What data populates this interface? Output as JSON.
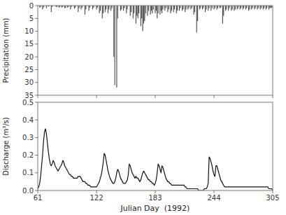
{
  "chart_data": [
    {
      "type": "bar",
      "ylabel": "Precipitation (mm)",
      "color": "#444444",
      "x": [
        63,
        64,
        66,
        67,
        70,
        72,
        75,
        76,
        80,
        81,
        83,
        84,
        86,
        87,
        89,
        90,
        92,
        93,
        95,
        96,
        99,
        100,
        103,
        104,
        106,
        107,
        110,
        111,
        114,
        115,
        118,
        119,
        122,
        123,
        125,
        126,
        128,
        129,
        131,
        132,
        134,
        135,
        137,
        138,
        140,
        141,
        143,
        144,
        147,
        148,
        150,
        151,
        153,
        154,
        157,
        158,
        160,
        161,
        163,
        164,
        165,
        166,
        168,
        169,
        170,
        171,
        172,
        173,
        175,
        176,
        178,
        179,
        180,
        181,
        183,
        184,
        185,
        186,
        188,
        189,
        190,
        191,
        193,
        194,
        196,
        197,
        199,
        200,
        202,
        203,
        205,
        206,
        208,
        209,
        211,
        212,
        214,
        215,
        217,
        218,
        220,
        221,
        223,
        224,
        226,
        227,
        229,
        230,
        232,
        233,
        235,
        236,
        238,
        239,
        241,
        242,
        244,
        245,
        247,
        248,
        250,
        251,
        253,
        254,
        256,
        257,
        259,
        260,
        262,
        263,
        265,
        266,
        268,
        269,
        271,
        272,
        274,
        275,
        277,
        278,
        280,
        281,
        283,
        284,
        286,
        287,
        289,
        290,
        292,
        293,
        295,
        296,
        298,
        299,
        301,
        302,
        303,
        304
      ],
      "values": [
        0.8,
        0.5,
        1.5,
        0.8,
        1.0,
        0.5,
        2.5,
        0.5,
        0.5,
        0.5,
        0.8,
        0.5,
        0.8,
        0.5,
        1.0,
        0.8,
        0.8,
        0.5,
        1.5,
        0.5,
        1.2,
        0.8,
        2.5,
        1.0,
        1.5,
        0.8,
        3.5,
        1.5,
        2.0,
        0.8,
        1.5,
        0.8,
        1.5,
        0.8,
        3.0,
        2.0,
        5.0,
        3.0,
        2.5,
        1.5,
        3.0,
        1.5,
        2.0,
        1.0,
        20.0,
        31.0,
        32.0,
        5.0,
        2.0,
        1.5,
        2.0,
        1.0,
        3.0,
        1.5,
        4.0,
        2.5,
        5.0,
        3.0,
        7.0,
        4.0,
        5.0,
        3.0,
        8.0,
        5.0,
        10.0,
        7.0,
        6.0,
        3.0,
        4.0,
        2.0,
        3.5,
        2.0,
        3.0,
        1.5,
        3.0,
        2.0,
        5.0,
        3.0,
        3.5,
        2.0,
        3.0,
        1.5,
        2.0,
        1.0,
        2.5,
        1.5,
        3.0,
        2.0,
        2.5,
        1.5,
        3.0,
        2.0,
        2.0,
        1.0,
        2.0,
        1.5,
        2.5,
        1.5,
        1.5,
        1.0,
        1.5,
        1.0,
        3.5,
        2.5,
        10.5,
        6.0,
        1.5,
        1.0,
        1.5,
        1.0,
        2.5,
        1.5,
        2.0,
        1.0,
        2.0,
        1.0,
        1.5,
        1.0,
        1.5,
        1.0,
        1.0,
        0.8,
        7.0,
        4.0,
        2.0,
        1.5,
        2.0,
        1.0,
        2.0,
        1.5,
        2.0,
        1.5,
        1.5,
        1.0,
        1.5,
        1.0,
        1.5,
        1.0,
        1.5,
        1.0,
        2.0,
        1.5,
        1.5,
        1.0,
        1.5,
        1.0,
        1.5,
        1.0,
        1.5,
        1.0,
        1.5,
        1.0,
        1.5,
        1.0,
        1.5,
        1.0,
        1.0,
        0.8
      ],
      "xlim": [
        61,
        305
      ],
      "xticks": [
        61,
        122,
        183,
        244,
        305
      ],
      "ylim": [
        35,
        0
      ],
      "yticks": [
        0,
        5,
        10,
        15,
        20,
        25,
        30,
        35
      ],
      "grid": false,
      "tick_labels": "y"
    },
    {
      "type": "line",
      "xlabel": "Julian Day  (1992)",
      "ylabel": "Discharge (m³/s)",
      "color": "#111111",
      "x": [
        61,
        62,
        63,
        64,
        65,
        66,
        67,
        68,
        69,
        70,
        71,
        72,
        73,
        74,
        75,
        76,
        77,
        78,
        79,
        80,
        81,
        82,
        83,
        84,
        85,
        86,
        87,
        88,
        89,
        90,
        91,
        92,
        93,
        94,
        95,
        96,
        97,
        98,
        99,
        100,
        101,
        102,
        103,
        104,
        105,
        106,
        107,
        108,
        109,
        110,
        111,
        112,
        113,
        114,
        115,
        116,
        117,
        118,
        119,
        120,
        121,
        122,
        123,
        124,
        125,
        126,
        127,
        128,
        129,
        130,
        131,
        132,
        133,
        134,
        135,
        136,
        137,
        138,
        139,
        140,
        141,
        142,
        143,
        144,
        145,
        146,
        147,
        148,
        149,
        150,
        151,
        152,
        153,
        154,
        155,
        156,
        157,
        158,
        159,
        160,
        161,
        162,
        163,
        164,
        165,
        166,
        167,
        168,
        169,
        170,
        171,
        172,
        173,
        174,
        175,
        176,
        177,
        178,
        179,
        180,
        181,
        182,
        183,
        184,
        185,
        186,
        187,
        188,
        189,
        190,
        191,
        192,
        193,
        194,
        195,
        196,
        197,
        198,
        199,
        200,
        201,
        202,
        203,
        204,
        205,
        206,
        207,
        208,
        209,
        210,
        211,
        212,
        213,
        214,
        215,
        216,
        217,
        218,
        219,
        220,
        221,
        222,
        223,
        224,
        225,
        226,
        227,
        228,
        229,
        230,
        231,
        232,
        233,
        234,
        235,
        236,
        237,
        238,
        239,
        240,
        241,
        242,
        243,
        244,
        245,
        246,
        247,
        248,
        249,
        250,
        251,
        252,
        253,
        254,
        255,
        256,
        257,
        258,
        259,
        260,
        261,
        262,
        263,
        264,
        265,
        266,
        267,
        268,
        269,
        270,
        271,
        272,
        273,
        274,
        275,
        276,
        277,
        278,
        279,
        280,
        281,
        282,
        283,
        284,
        285,
        286,
        287,
        288,
        289,
        290,
        291,
        292,
        293,
        294,
        295,
        296,
        297,
        298,
        299,
        300,
        301,
        302,
        303,
        304,
        305
      ],
      "values": [
        0.01,
        0.02,
        0.04,
        0.08,
        0.14,
        0.2,
        0.28,
        0.33,
        0.35,
        0.32,
        0.27,
        0.22,
        0.18,
        0.15,
        0.14,
        0.15,
        0.17,
        0.16,
        0.14,
        0.13,
        0.12,
        0.11,
        0.12,
        0.13,
        0.14,
        0.15,
        0.17,
        0.16,
        0.14,
        0.13,
        0.12,
        0.11,
        0.1,
        0.09,
        0.09,
        0.08,
        0.08,
        0.07,
        0.07,
        0.07,
        0.07,
        0.07,
        0.08,
        0.08,
        0.08,
        0.07,
        0.06,
        0.05,
        0.05,
        0.05,
        0.04,
        0.04,
        0.03,
        0.03,
        0.03,
        0.02,
        0.02,
        0.02,
        0.02,
        0.02,
        0.02,
        0.02,
        0.03,
        0.04,
        0.05,
        0.07,
        0.09,
        0.12,
        0.16,
        0.21,
        0.2,
        0.17,
        0.14,
        0.11,
        0.09,
        0.07,
        0.06,
        0.05,
        0.04,
        0.04,
        0.05,
        0.07,
        0.1,
        0.12,
        0.11,
        0.09,
        0.07,
        0.06,
        0.05,
        0.04,
        0.04,
        0.04,
        0.05,
        0.06,
        0.09,
        0.15,
        0.14,
        0.12,
        0.1,
        0.09,
        0.08,
        0.07,
        0.08,
        0.07,
        0.07,
        0.06,
        0.05,
        0.06,
        0.08,
        0.1,
        0.11,
        0.1,
        0.09,
        0.08,
        0.07,
        0.06,
        0.06,
        0.05,
        0.05,
        0.04,
        0.04,
        0.03,
        0.04,
        0.06,
        0.1,
        0.15,
        0.14,
        0.12,
        0.1,
        0.14,
        0.13,
        0.11,
        0.09,
        0.07,
        0.06,
        0.05,
        0.05,
        0.04,
        0.04,
        0.03,
        0.03,
        0.03,
        0.03,
        0.03,
        0.03,
        0.03,
        0.03,
        0.03,
        0.03,
        0.03,
        0.03,
        0.03,
        0.03,
        0.02,
        0.02,
        0.01,
        0.01,
        0.01,
        0.01,
        0.01,
        0.01,
        0.01,
        0.01,
        0.01,
        0.01,
        0.01,
        0.01,
        0.0,
        0.0,
        0.0,
        0.0,
        0.0,
        0.0,
        0.01,
        0.01,
        0.01,
        0.02,
        0.04,
        0.19,
        0.18,
        0.16,
        0.14,
        0.11,
        0.09,
        0.08,
        0.14,
        0.14,
        0.12,
        0.1,
        0.08,
        0.06,
        0.05,
        0.04,
        0.03,
        0.02,
        0.02,
        0.02,
        0.02,
        0.02,
        0.02,
        0.02,
        0.02,
        0.02,
        0.02,
        0.02,
        0.02,
        0.02,
        0.02,
        0.02,
        0.02,
        0.02,
        0.02,
        0.02,
        0.02,
        0.02,
        0.02,
        0.02,
        0.02,
        0.02,
        0.02,
        0.02,
        0.02,
        0.02,
        0.02,
        0.02,
        0.02,
        0.02,
        0.02,
        0.02,
        0.02,
        0.02,
        0.02,
        0.02,
        0.02,
        0.02,
        0.02,
        0.02,
        0.02,
        0.02,
        0.02,
        0.01,
        0.01,
        0.01,
        0.01,
        0.0
      ],
      "xlim": [
        61,
        305
      ],
      "xticks": [
        61,
        122,
        183,
        244,
        305
      ],
      "ylim": [
        0,
        0.5
      ],
      "yticks": [
        {
          "value": 0.0,
          "label": "0.0"
        },
        0.1,
        0.2,
        0.3,
        0.4,
        0.5
      ],
      "grid": false
    }
  ]
}
